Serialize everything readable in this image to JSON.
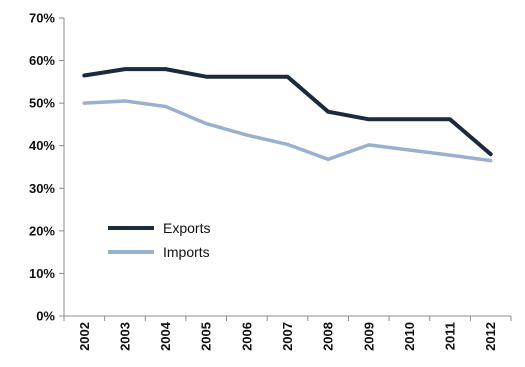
{
  "chart_data": {
    "type": "line",
    "x": [
      "2002",
      "2003",
      "2004",
      "2005",
      "2006",
      "2007",
      "2008",
      "2009",
      "2010",
      "2011",
      "2012"
    ],
    "series": [
      {
        "name": "Exports",
        "color": "#1b2a3c",
        "values": [
          56.5,
          58,
          58,
          56.2,
          56.2,
          56.2,
          48,
          46.2,
          46.2,
          46.2,
          38
        ]
      },
      {
        "name": "Imports",
        "color": "#99b1cf",
        "values": [
          50,
          50.5,
          49.2,
          45.2,
          42.5,
          40.3,
          36.8,
          40.2,
          39,
          37.8,
          36.5
        ]
      }
    ],
    "yticks": [
      "0%",
      "10%",
      "20%",
      "30%",
      "40%",
      "50%",
      "60%",
      "70%"
    ],
    "ylim": [
      0,
      70
    ],
    "grid": false,
    "legend_position": "lower-left"
  }
}
